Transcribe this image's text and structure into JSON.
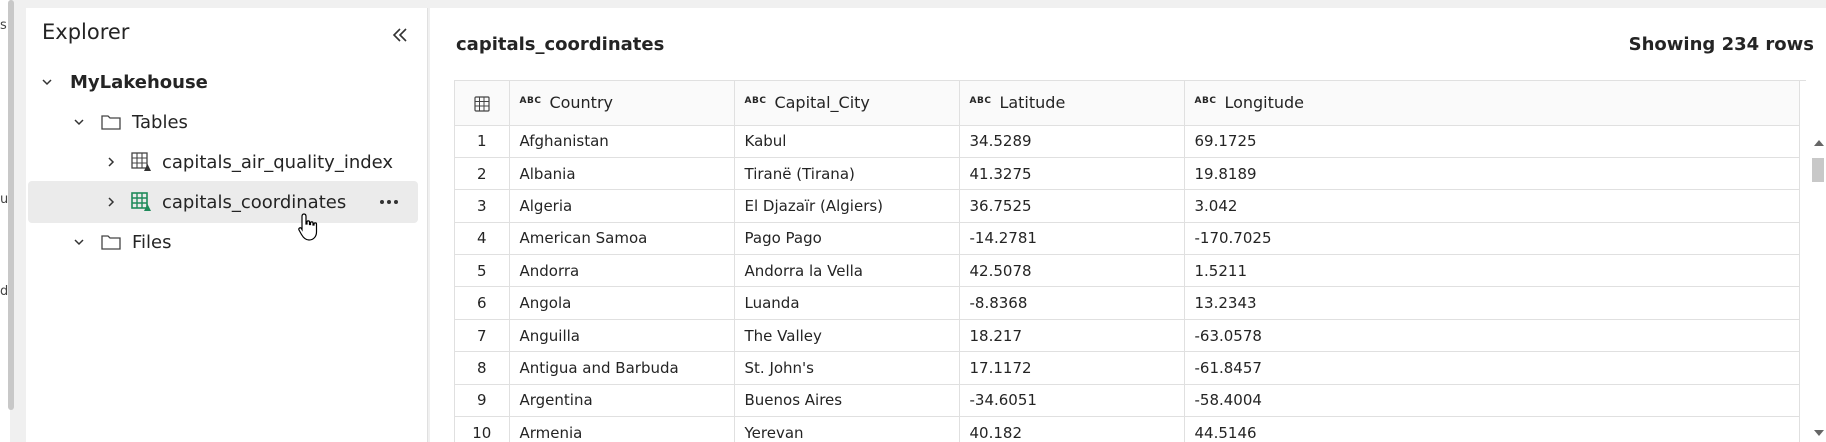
{
  "explorer": {
    "title": "Explorer",
    "tree": {
      "lakehouse": "MyLakehouse",
      "tables_folder": "Tables",
      "tables": [
        {
          "name": "capitals_air_quality_index",
          "selected": false
        },
        {
          "name": "capitals_coordinates",
          "selected": true
        }
      ],
      "files_folder": "Files"
    }
  },
  "main": {
    "table_name": "capitals_coordinates",
    "row_count": "Showing 234 rows",
    "type_badge": "ABC",
    "columns": [
      "Country",
      "Capital_City",
      "Latitude",
      "Longitude"
    ],
    "rows": [
      {
        "idx": "1",
        "cells": [
          "Afghanistan",
          "Kabul",
          "34.5289",
          "69.1725"
        ]
      },
      {
        "idx": "2",
        "cells": [
          "Albania",
          "Tiranë (Tirana)",
          "41.3275",
          "19.8189"
        ]
      },
      {
        "idx": "3",
        "cells": [
          "Algeria",
          "El Djazaïr (Algiers)",
          "36.7525",
          "3.042"
        ]
      },
      {
        "idx": "4",
        "cells": [
          "American Samoa",
          "Pago Pago",
          "-14.2781",
          "-170.7025"
        ]
      },
      {
        "idx": "5",
        "cells": [
          "Andorra",
          "Andorra la Vella",
          "42.5078",
          "1.5211"
        ]
      },
      {
        "idx": "6",
        "cells": [
          "Angola",
          "Luanda",
          "-8.8368",
          "13.2343"
        ]
      },
      {
        "idx": "7",
        "cells": [
          "Anguilla",
          "The Valley",
          "18.217",
          "-63.0578"
        ]
      },
      {
        "idx": "8",
        "cells": [
          "Antigua and Barbuda",
          "St. John's",
          "17.1172",
          "-61.8457"
        ]
      },
      {
        "idx": "9",
        "cells": [
          "Argentina",
          "Buenos Aires",
          "-34.6051",
          "-58.4004"
        ]
      },
      {
        "idx": "10",
        "cells": [
          "Armenia",
          "Yerevan",
          "40.182",
          "44.5146"
        ]
      }
    ]
  },
  "left_strip_chars": [
    "s",
    "u",
    "di"
  ],
  "colors": {
    "accent_green": "#1f8a5a",
    "selected_bg": "#ebebeb"
  }
}
